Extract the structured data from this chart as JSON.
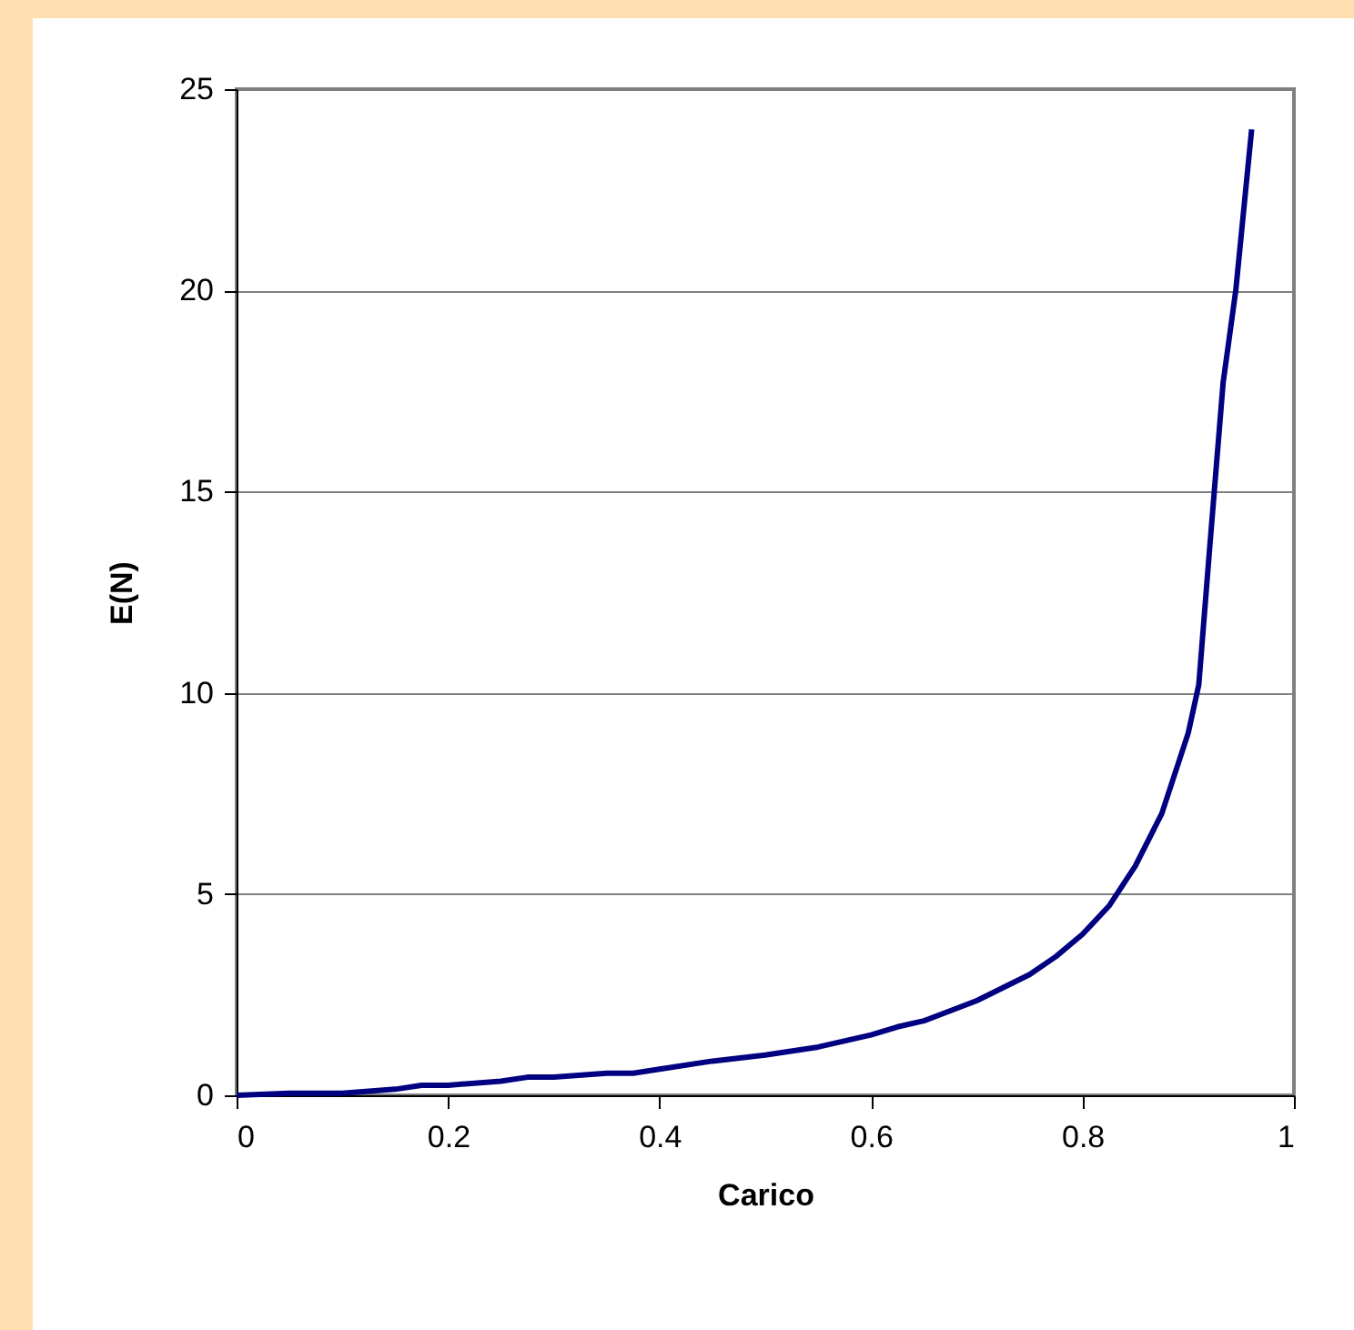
{
  "chart_data": {
    "type": "line",
    "xlabel": "Carico",
    "ylabel": "E(N)",
    "x": [
      0,
      0.05,
      0.1,
      0.15,
      0.175,
      0.2,
      0.25,
      0.275,
      0.3,
      0.35,
      0.375,
      0.4,
      0.45,
      0.5,
      0.55,
      0.6,
      0.625,
      0.65,
      0.7,
      0.75,
      0.775,
      0.8,
      0.825,
      0.85,
      0.875,
      0.9,
      0.91,
      0.92,
      0.933,
      0.945,
      0.96
    ],
    "series": [
      {
        "color": "#000080",
        "values": [
          0,
          0.05,
          0.05,
          0.15,
          0.25,
          0.25,
          0.35,
          0.45,
          0.45,
          0.55,
          0.55,
          0.65,
          0.85,
          1.0,
          1.2,
          1.5,
          1.7,
          1.85,
          2.35,
          3.0,
          3.45,
          4.0,
          4.7,
          5.7,
          7.0,
          9.0,
          10.2,
          13.5,
          17.7,
          20,
          24
        ]
      }
    ],
    "xlim": [
      0,
      1
    ],
    "xticks": [
      0,
      0.2,
      0.4,
      0.6,
      0.8,
      1
    ],
    "ylim": [
      0,
      25
    ],
    "yticks": [
      0,
      5,
      10,
      15,
      20,
      25
    ],
    "grid": "y",
    "marker": "none",
    "line_style": "solid"
  }
}
